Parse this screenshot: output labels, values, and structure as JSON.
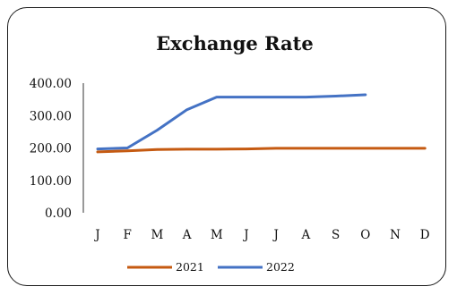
{
  "chart_data": {
    "type": "line",
    "title": "Exchange Rate",
    "categories": [
      "J",
      "F",
      "M",
      "A",
      "M",
      "J",
      "J",
      "A",
      "S",
      "O",
      "N",
      "D"
    ],
    "ylim": [
      0,
      400
    ],
    "yticks": [
      "0.00",
      "100.00",
      "200.00",
      "300.00",
      "400.00"
    ],
    "grid": false,
    "legend_position": "bottom",
    "series": [
      {
        "name": "2021",
        "color": "#c55a11",
        "values": [
          188,
          191,
          195,
          196,
          196,
          197,
          199,
          199,
          199,
          199,
          199,
          199
        ]
      },
      {
        "name": "2022",
        "color": "#4472c4",
        "values": [
          197,
          200,
          255,
          318,
          357,
          357,
          357,
          357,
          360,
          364,
          null,
          null
        ]
      }
    ]
  }
}
